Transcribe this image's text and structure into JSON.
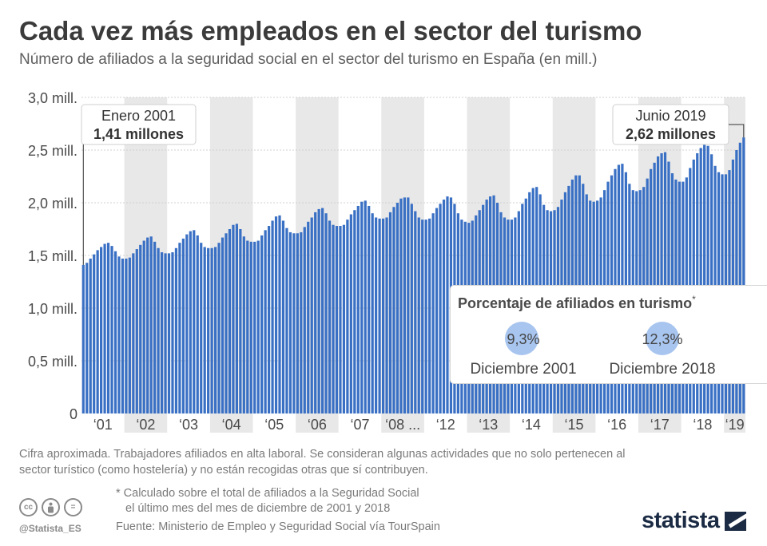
{
  "header": {
    "title": "Cada vez más empleados en el sector del turismo",
    "subtitle": "Número de afiliados a la seguridad social en el sector del turismo en España (en mill.)"
  },
  "chart_data": {
    "type": "bar",
    "title": "Cada vez más empleados en el sector del turismo",
    "subtitle": "Número de afiliados a la seguridad social en el sector del turismo en España (en mill.)",
    "ylim": [
      0,
      3.0
    ],
    "y_ticks": [
      0,
      0.5,
      1.0,
      1.5,
      2.0,
      2.5,
      3.0
    ],
    "y_tick_labels": [
      "0",
      "0,5 mill.",
      "1,0 mill.",
      "1,5 mill.",
      "2,0 mill.",
      "2,5 mill.",
      "3,0 mill."
    ],
    "x_tick_labels": [
      "‘01",
      "‘02",
      "‘03",
      "‘04",
      "‘05",
      "‘06",
      "‘07",
      "‘08 ...",
      "‘12",
      "‘13",
      "‘14",
      "‘15",
      "‘16",
      "‘17",
      "‘18",
      "‘19"
    ],
    "grid": true,
    "bar_color": "#3a70c4",
    "band_color": "#e8e8e8",
    "segments": [
      {
        "label": "‘01",
        "values": [
          1.41,
          1.43,
          1.47,
          1.51,
          1.55,
          1.58,
          1.61,
          1.62,
          1.59,
          1.54,
          1.49,
          1.47
        ]
      },
      {
        "label": "‘02",
        "values": [
          1.47,
          1.48,
          1.52,
          1.56,
          1.6,
          1.64,
          1.67,
          1.68,
          1.63,
          1.57,
          1.53,
          1.52
        ]
      },
      {
        "label": "‘03",
        "values": [
          1.52,
          1.53,
          1.57,
          1.62,
          1.66,
          1.7,
          1.73,
          1.74,
          1.69,
          1.62,
          1.58,
          1.57
        ]
      },
      {
        "label": "‘04",
        "values": [
          1.57,
          1.58,
          1.62,
          1.67,
          1.71,
          1.75,
          1.79,
          1.8,
          1.75,
          1.68,
          1.64,
          1.63
        ]
      },
      {
        "label": "‘05",
        "values": [
          1.63,
          1.64,
          1.69,
          1.74,
          1.78,
          1.83,
          1.87,
          1.88,
          1.83,
          1.76,
          1.72,
          1.71
        ]
      },
      {
        "label": "‘06",
        "values": [
          1.71,
          1.72,
          1.77,
          1.82,
          1.86,
          1.91,
          1.94,
          1.95,
          1.9,
          1.83,
          1.79,
          1.78
        ]
      },
      {
        "label": "‘07",
        "values": [
          1.78,
          1.79,
          1.84,
          1.89,
          1.93,
          1.97,
          2.01,
          2.02,
          1.97,
          1.9,
          1.86,
          1.85
        ]
      },
      {
        "label": "‘08 ...",
        "values": [
          1.85,
          1.86,
          1.91,
          1.96,
          2.0,
          2.04,
          2.05,
          2.05,
          1.99,
          1.92,
          1.86,
          1.84
        ]
      },
      {
        "label": "‘12",
        "values": [
          1.84,
          1.85,
          1.9,
          1.95,
          1.99,
          2.03,
          2.06,
          2.05,
          1.99,
          1.9,
          1.84,
          1.82
        ]
      },
      {
        "label": "‘13",
        "values": [
          1.81,
          1.83,
          1.88,
          1.93,
          1.98,
          2.03,
          2.06,
          2.07,
          2.0,
          1.91,
          1.86,
          1.84
        ]
      },
      {
        "label": "‘14",
        "values": [
          1.84,
          1.86,
          1.92,
          1.99,
          2.04,
          2.1,
          2.14,
          2.15,
          2.08,
          1.98,
          1.93,
          1.92
        ]
      },
      {
        "label": "‘15",
        "values": [
          1.93,
          1.96,
          2.03,
          2.1,
          2.16,
          2.22,
          2.26,
          2.26,
          2.18,
          2.08,
          2.02,
          2.01
        ]
      },
      {
        "label": "‘16",
        "values": [
          2.02,
          2.05,
          2.12,
          2.2,
          2.26,
          2.32,
          2.36,
          2.37,
          2.29,
          2.18,
          2.12,
          2.11
        ]
      },
      {
        "label": "‘17",
        "values": [
          2.12,
          2.15,
          2.23,
          2.32,
          2.38,
          2.44,
          2.47,
          2.48,
          2.39,
          2.28,
          2.22,
          2.2
        ]
      },
      {
        "label": "‘18",
        "values": [
          2.2,
          2.24,
          2.33,
          2.41,
          2.47,
          2.52,
          2.55,
          2.54,
          2.46,
          2.35,
          2.29,
          2.27
        ]
      },
      {
        "label": "‘19",
        "values": [
          2.27,
          2.31,
          2.41,
          2.5,
          2.57,
          2.62
        ]
      }
    ],
    "annotations": [
      {
        "line1": "Enero 2001",
        "line2": "1,41 millones"
      },
      {
        "line1": "Junio 2019",
        "line2": "2,62 millones"
      }
    ]
  },
  "note_box": {
    "title": "Porcentaje de afiliados en turismo",
    "title_mark": "*",
    "stats": [
      {
        "value": "9,3%",
        "label": "Diciembre 2001"
      },
      {
        "value": "12,3%",
        "label": "Diciembre 2018"
      }
    ]
  },
  "footer": {
    "note": "Cifra aproximada. Trabajadores afiliados en alta laboral. Se consideran algunas actividades que no solo pertenecen al sector turístico (como hostelería) y no están recogidas otras que sí contribuyen.",
    "asterisk_line1": "* Calculado sobre el total de afiliados a la Seguridad Social",
    "asterisk_line2": "el último mes del mes de diciembre de 2001 y 2018",
    "source": "Fuente: Ministerio de Empleo y Seguridad Social vía TourSpain",
    "handle": "@Statista_ES",
    "license_icons": [
      "cc",
      "by",
      "="
    ],
    "logo_text": "statista"
  }
}
